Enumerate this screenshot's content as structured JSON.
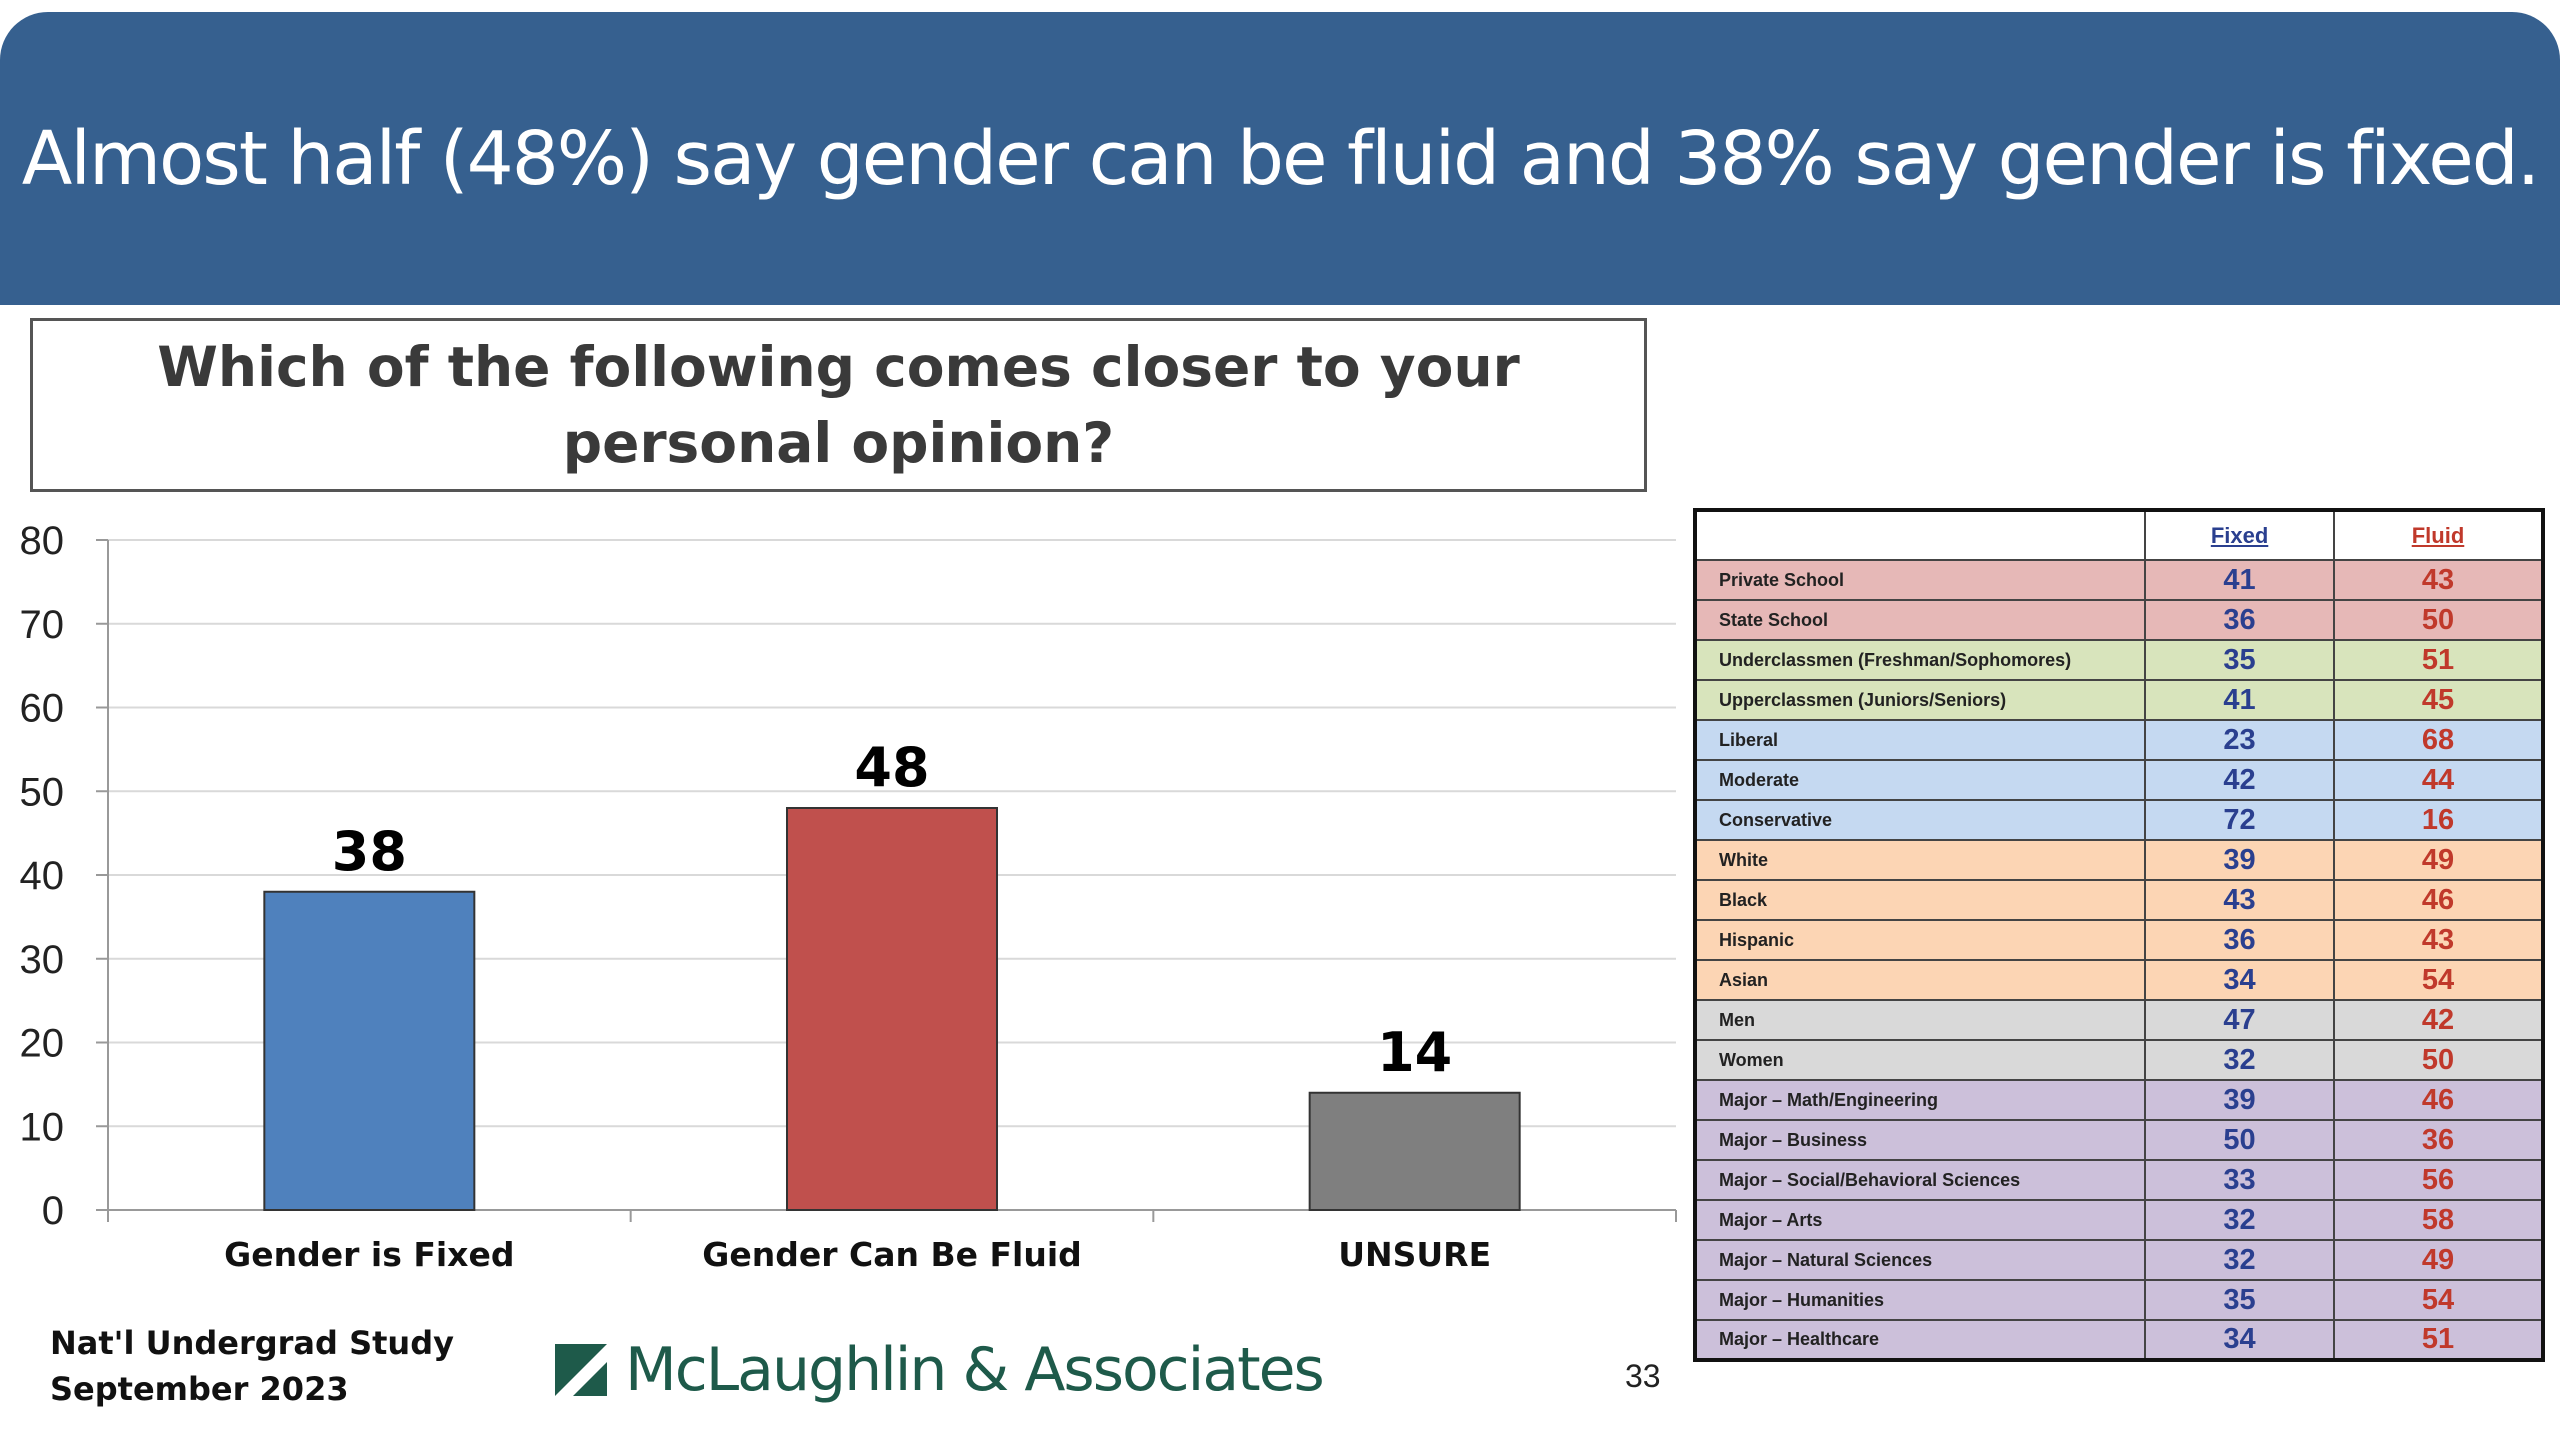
{
  "header": {
    "title": "Almost half (48%) say gender can be fluid and 38% say gender is fixed."
  },
  "question": "Which of the following comes closer to your personal opinion?",
  "chart_data": {
    "type": "bar",
    "categories": [
      "Gender is Fixed",
      "Gender Can Be Fluid",
      "UNSURE"
    ],
    "values": [
      38,
      48,
      14
    ],
    "colors": [
      "#4f81bd",
      "#c0504d",
      "#7f7f7f"
    ],
    "ylim": [
      0,
      80
    ],
    "yticks": [
      0,
      10,
      20,
      30,
      40,
      50,
      60,
      70,
      80
    ],
    "grid": true,
    "data_labels": true
  },
  "footer": {
    "study": "Nat'l Undergrad Study",
    "date": "September 2023",
    "logo_text": "McLaughlin & Associates",
    "page_number": "33"
  },
  "breakdown": {
    "headers": {
      "fixed": "Fixed",
      "fluid": "Fluid"
    },
    "rows": [
      {
        "label": "Private School",
        "fixed": "41",
        "fluid": "43",
        "group_color": "#e6b8b7"
      },
      {
        "label": "State School",
        "fixed": "36",
        "fluid": "50",
        "group_color": "#e6b8b7"
      },
      {
        "label": "Underclassmen (Freshman/Sophomores)",
        "fixed": "35",
        "fluid": "51",
        "group_color": "#d8e4bc"
      },
      {
        "label": "Upperclassmen (Juniors/Seniors)",
        "fixed": "41",
        "fluid": "45",
        "group_color": "#d8e4bc"
      },
      {
        "label": "Liberal",
        "fixed": "23",
        "fluid": "68",
        "group_color": "#c5d9f1"
      },
      {
        "label": "Moderate",
        "fixed": "42",
        "fluid": "44",
        "group_color": "#c5d9f1"
      },
      {
        "label": "Conservative",
        "fixed": "72",
        "fluid": "16",
        "group_color": "#c5d9f1"
      },
      {
        "label": "White",
        "fixed": "39",
        "fluid": "49",
        "group_color": "#fcd5b4"
      },
      {
        "label": "Black",
        "fixed": "43",
        "fluid": "46",
        "group_color": "#fcd5b4"
      },
      {
        "label": "Hispanic",
        "fixed": "36",
        "fluid": "43",
        "group_color": "#fcd5b4"
      },
      {
        "label": "Asian",
        "fixed": "34",
        "fluid": "54",
        "group_color": "#fcd5b4"
      },
      {
        "label": "Men",
        "fixed": "47",
        "fluid": "42",
        "group_color": "#d9d9d9"
      },
      {
        "label": "Women",
        "fixed": "32",
        "fluid": "50",
        "group_color": "#d9d9d9"
      },
      {
        "label": "Major – Math/Engineering",
        "fixed": "39",
        "fluid": "46",
        "group_color": "#ccc0da"
      },
      {
        "label": "Major – Business",
        "fixed": "50",
        "fluid": "36",
        "group_color": "#ccc0da"
      },
      {
        "label": "Major – Social/Behavioral Sciences",
        "fixed": "33",
        "fluid": "56",
        "group_color": "#ccc0da"
      },
      {
        "label": "Major – Arts",
        "fixed": "32",
        "fluid": "58",
        "group_color": "#ccc0da"
      },
      {
        "label": "Major – Natural Sciences",
        "fixed": "32",
        "fluid": "49",
        "group_color": "#ccc0da"
      },
      {
        "label": "Major – Humanities",
        "fixed": "35",
        "fluid": "54",
        "group_color": "#ccc0da"
      },
      {
        "label": "Major – Healthcare",
        "fixed": "34",
        "fluid": "51",
        "group_color": "#ccc0da"
      }
    ]
  }
}
